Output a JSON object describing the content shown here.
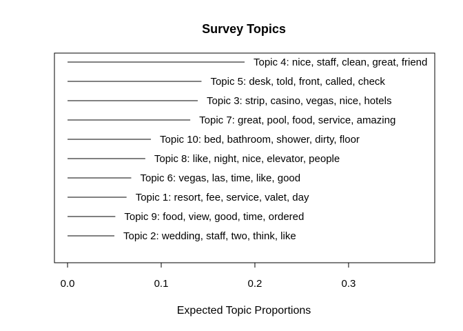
{
  "chart_data": {
    "type": "bar",
    "orientation": "horizontal",
    "title": "Survey Topics",
    "xlabel": "Expected Topic Proportions",
    "ylabel": "",
    "xlim": [
      -0.014,
      0.392
    ],
    "xticks": [
      "0.0",
      "0.1",
      "0.2",
      "0.3"
    ],
    "xtick_values": [
      0.0,
      0.1,
      0.2,
      0.3
    ],
    "grid": false,
    "bars": [
      {
        "label": "Topic 4: nice, staff, clean, great, friend",
        "value": 0.189
      },
      {
        "label": "Topic 5: desk, told, front, called, check",
        "value": 0.143
      },
      {
        "label": "Topic 3: strip, casino, vegas, nice, hotels",
        "value": 0.139
      },
      {
        "label": "Topic 7: great, pool, food, service, amazing",
        "value": 0.131
      },
      {
        "label": "Topic 10: bed, bathroom, shower, dirty, floor",
        "value": 0.089
      },
      {
        "label": "Topic 8: like, night, nice, elevator, people",
        "value": 0.083
      },
      {
        "label": "Topic 6: vegas, las, time, like, good",
        "value": 0.068
      },
      {
        "label": "Topic 1: resort, fee, service, valet, day",
        "value": 0.063
      },
      {
        "label": "Topic 9: food, view, good, time, ordered",
        "value": 0.051
      },
      {
        "label": "Topic 2: wedding, staff, two, think, like",
        "value": 0.05
      }
    ]
  }
}
